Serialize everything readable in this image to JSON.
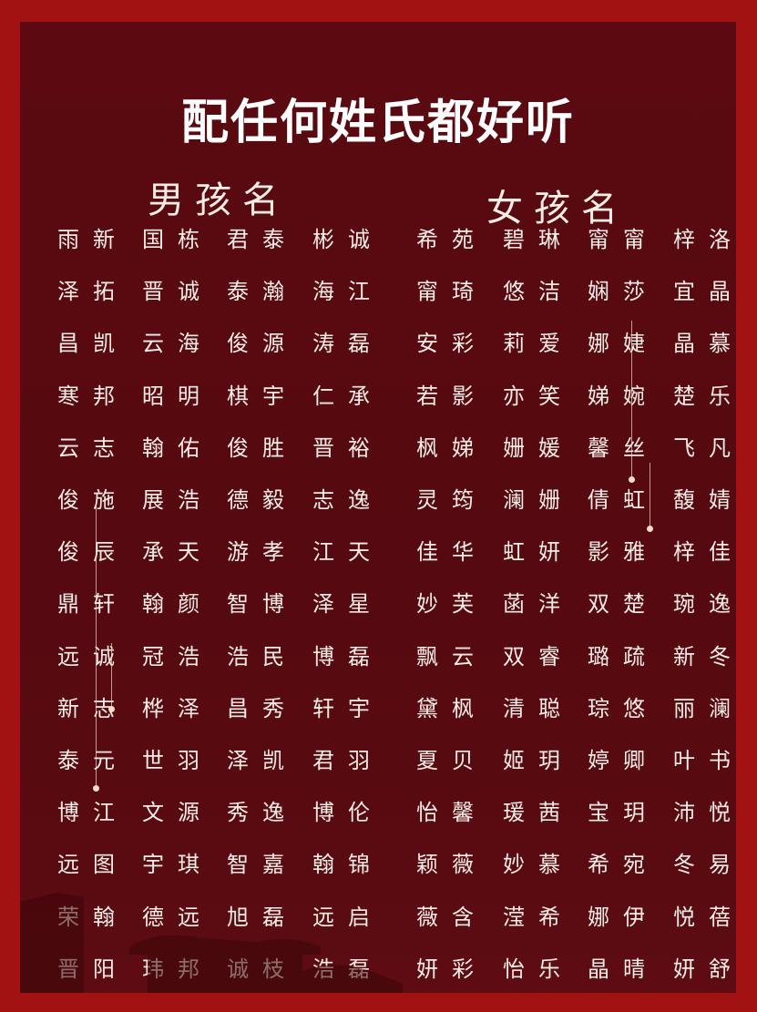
{
  "title": "配任何姓氏都好听",
  "boys": {
    "heading": "男孩名",
    "columns": [
      [
        "雨新",
        "泽拓",
        "昌凯",
        "寒邦",
        "云志",
        "俊施",
        "俊辰",
        "鼎轩",
        "远诚",
        "新志",
        "泰元",
        "博江",
        "远图",
        "荣翰",
        "晋阳"
      ],
      [
        "国栋",
        "晋诚",
        "云海",
        "昭明",
        "翰佑",
        "展浩",
        "承天",
        "翰颜",
        "冠浩",
        "桦泽",
        "世羽",
        "文源",
        "宇琪",
        "德远",
        "玮邦"
      ],
      [
        "君泰",
        "泰瀚",
        "俊源",
        "棋宇",
        "俊胜",
        "德毅",
        "游孝",
        "智博",
        "浩民",
        "昌秀",
        "泽凯",
        "秀逸",
        "智嘉",
        "旭磊",
        "诚枝"
      ],
      [
        "彬诚",
        "海江",
        "涛磊",
        "仁承",
        "晋裕",
        "志逸",
        "江天",
        "泽星",
        "博磊",
        "轩宇",
        "君羽",
        "博伦",
        "翰锦",
        "远启",
        "浩磊"
      ]
    ]
  },
  "girls": {
    "heading": "女孩名",
    "columns": [
      [
        "希苑",
        "甯琦",
        "安彩",
        "若影",
        "枫娣",
        "灵筠",
        "佳华",
        "妙芙",
        "飘云",
        "黛枫",
        "夏贝",
        "怡馨",
        "颖薇",
        "薇含",
        "妍彩"
      ],
      [
        "碧琳",
        "悠洁",
        "莉爱",
        "亦笑",
        "姗媛",
        "澜姗",
        "虹妍",
        "菡洋",
        "双睿",
        "清聪",
        "姬玥",
        "瑗茜",
        "妙慕",
        "滢希",
        "怡乐"
      ],
      [
        "甯甯",
        "娴莎",
        "娜婕",
        "娣婉",
        "馨丝",
        "倩虹",
        "影雅",
        "双楚",
        "璐疏",
        "琮悠",
        "婷卿",
        "宝玥",
        "希宛",
        "娜伊",
        "晶晴"
      ],
      [
        "梓洛",
        "宜晶",
        "晶慕",
        "楚乐",
        "飞凡",
        "馥婧",
        "梓佳",
        "琬逸",
        "新冬",
        "丽澜",
        "叶书",
        "沛悦",
        "冬易",
        "悦蓓",
        "妍舒"
      ]
    ]
  }
}
